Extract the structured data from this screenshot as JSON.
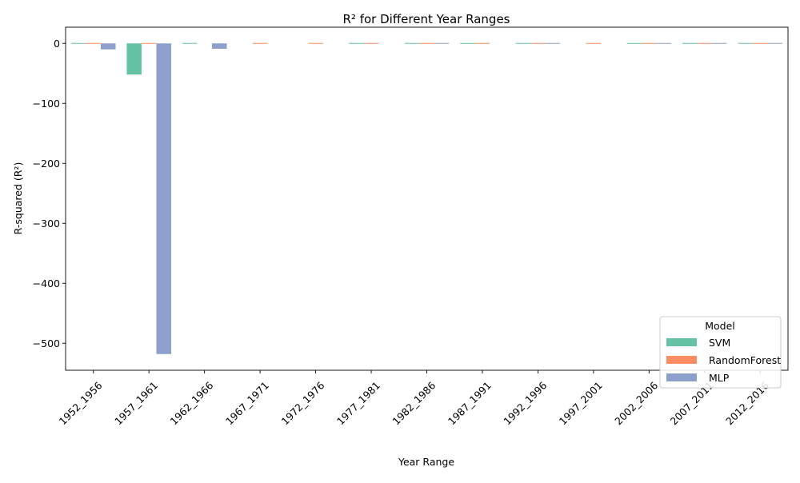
{
  "chart_data": {
    "type": "bar",
    "title": "R² for Different Year Ranges",
    "xlabel": "Year Range",
    "ylabel": "R-squared (R²)",
    "ylim": [
      -545,
      27
    ],
    "yticks": [
      0,
      -100,
      -200,
      -300,
      -400,
      -500
    ],
    "ytick_labels": [
      "0",
      "−100",
      "−200",
      "−300",
      "−400",
      "−500"
    ],
    "grid": false,
    "legend": {
      "title": "Model",
      "placement": "lower-right"
    },
    "categories": [
      "1952_1956",
      "1957_1961",
      "1962_1966",
      "1967_1971",
      "1972_1976",
      "1977_1981",
      "1982_1986",
      "1987_1991",
      "1992_1996",
      "1997_2001",
      "2002_2006",
      "2007_2011",
      "2012_2016"
    ],
    "series": [
      {
        "name": "SVM",
        "color": "#66c2a5",
        "values": [
          0.3,
          -52,
          -1.2,
          null,
          null,
          0.3,
          0.3,
          0.3,
          0.3,
          null,
          0.3,
          0.3,
          0.3
        ]
      },
      {
        "name": "RandomForest",
        "color": "#fc8d62",
        "values": [
          0.4,
          0.5,
          null,
          0.5,
          0.5,
          0.4,
          0.4,
          0.4,
          0.4,
          0.5,
          0.4,
          0.4,
          0.4
        ]
      },
      {
        "name": "MLP",
        "color": "#8da0cb",
        "values": [
          -10,
          -518,
          -9,
          null,
          null,
          null,
          0.3,
          null,
          0.3,
          null,
          0.3,
          0.3,
          0.3
        ]
      }
    ]
  }
}
